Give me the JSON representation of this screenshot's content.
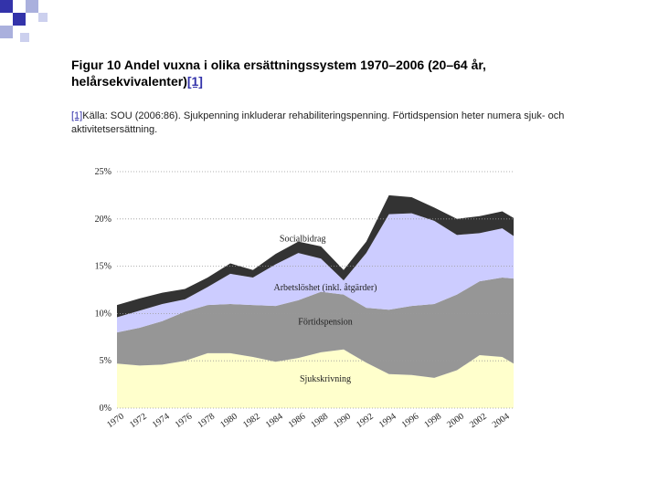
{
  "header": {
    "title": "Figur 10 Andel vuxna i olika ersättningssystem 1970–2006 (20–64 år, helårsekvivalenter)",
    "title_ref": "[1]",
    "footnote_ref": "[1]",
    "footnote": "Källa: SOU (2006:86). Sjukpenning inkluderar rehabiliteringspenning. Förtidspension heter numera sjuk- och aktivitetsersättning."
  },
  "chart_data": {
    "type": "stacked_area",
    "x": [
      1970,
      1972,
      1974,
      1976,
      1978,
      1980,
      1982,
      1984,
      1986,
      1988,
      1990,
      1992,
      1994,
      1996,
      1998,
      2000,
      2002,
      2004,
      2005
    ],
    "xlim": [
      1970,
      2005
    ],
    "xticks": [
      1970,
      1972,
      1974,
      1976,
      1978,
      1980,
      1982,
      1984,
      1986,
      1988,
      1990,
      1992,
      1994,
      1996,
      1998,
      2000,
      2002,
      2004
    ],
    "ylim": [
      0,
      25
    ],
    "yticks": [
      {
        "value": 0,
        "label": "0%"
      },
      {
        "value": 5,
        "label": "5%"
      },
      {
        "value": 10,
        "label": "10%"
      },
      {
        "value": 15,
        "label": "15%"
      },
      {
        "value": 20,
        "label": "20%"
      },
      {
        "value": 25,
        "label": "25%"
      }
    ],
    "grid": true,
    "series": [
      {
        "name": "Sjukskrivning",
        "color": "#ffffcc",
        "values": [
          4.7,
          4.5,
          4.6,
          5.0,
          5.8,
          5.8,
          5.4,
          4.9,
          5.3,
          5.9,
          6.2,
          4.8,
          3.6,
          3.5,
          3.2,
          4.0,
          5.6,
          5.4,
          4.7
        ]
      },
      {
        "name": "Förtidspension",
        "color": "#969696",
        "values": [
          3.3,
          4.0,
          4.6,
          5.2,
          5.1,
          5.2,
          5.5,
          5.9,
          6.1,
          6.4,
          5.8,
          5.8,
          6.8,
          7.3,
          7.8,
          8.0,
          7.8,
          8.4,
          9.0
        ]
      },
      {
        "name": "Arbetslöshet (inkl. åtgärder)",
        "color": "#ccccff",
        "values": [
          1.6,
          1.8,
          1.8,
          1.3,
          1.9,
          3.2,
          2.9,
          4.4,
          5.0,
          3.5,
          1.5,
          5.8,
          10.1,
          9.8,
          8.8,
          6.3,
          5.1,
          5.2,
          4.5
        ]
      },
      {
        "name": "Socialbidrag",
        "color": "#333333",
        "values": [
          1.3,
          1.3,
          1.2,
          1.1,
          1.0,
          1.1,
          0.8,
          1.1,
          1.2,
          1.3,
          1.1,
          1.2,
          2.0,
          1.7,
          1.4,
          1.7,
          1.8,
          1.8,
          1.9
        ]
      }
    ]
  }
}
